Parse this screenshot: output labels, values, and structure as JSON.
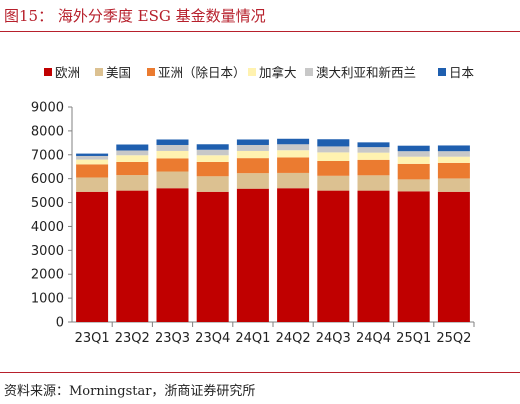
{
  "header": {
    "title": "图15： 海外分季度 ESG 基金数量情况"
  },
  "footer": {
    "source": "资料来源：Morningstar，浙商证券研究所"
  },
  "colors": {
    "accent": "#b7202c"
  },
  "chart_data": {
    "type": "bar",
    "stacked": true,
    "categories": [
      "23Q1",
      "23Q2",
      "23Q3",
      "23Q4",
      "24Q1",
      "24Q2",
      "24Q3",
      "24Q4",
      "25Q1",
      "25Q2"
    ],
    "ylim": [
      0,
      9000
    ],
    "yticks": [
      0,
      1000,
      2000,
      3000,
      4000,
      5000,
      6000,
      7000,
      8000,
      9000
    ],
    "legend_position": "top",
    "grid": false,
    "series": [
      {
        "name": "欧洲",
        "color": "#c00000",
        "values": [
          5450,
          5500,
          5600,
          5450,
          5580,
          5600,
          5500,
          5500,
          5470,
          5450
        ]
      },
      {
        "name": "美国",
        "color": "#dcc191",
        "values": [
          600,
          650,
          700,
          650,
          650,
          640,
          620,
          640,
          500,
          560
        ]
      },
      {
        "name": "亚洲（除日本）",
        "color": "#eb7b30",
        "values": [
          550,
          550,
          550,
          600,
          630,
          650,
          620,
          650,
          650,
          650
        ]
      },
      {
        "name": "加拿大",
        "color": "#fff2b0",
        "values": [
          200,
          280,
          310,
          280,
          300,
          300,
          360,
          300,
          300,
          260
        ]
      },
      {
        "name": "澳大利亚和新西兰",
        "color": "#c8c8c8",
        "values": [
          150,
          200,
          250,
          230,
          250,
          250,
          250,
          230,
          230,
          230
        ]
      },
      {
        "name": "日本",
        "color": "#1f5faf",
        "values": [
          100,
          250,
          230,
          230,
          230,
          230,
          300,
          200,
          230,
          240
        ]
      }
    ]
  }
}
